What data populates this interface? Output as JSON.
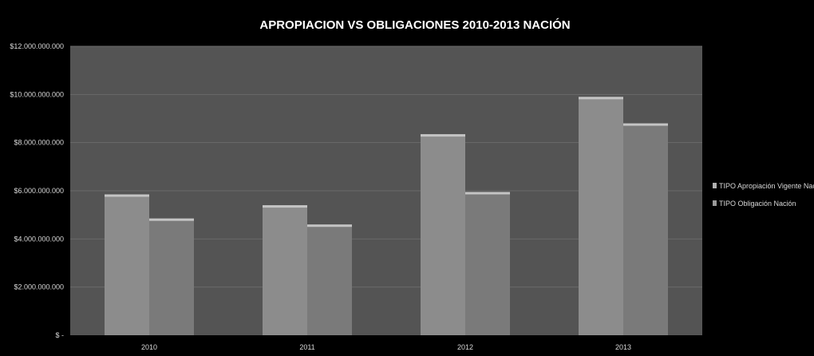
{
  "chart_data": {
    "type": "bar",
    "title": "APROPIACION VS OBLIGACIONES 2010-2013 NACIÓN",
    "categories": [
      "2010",
      "2011",
      "2012",
      "2013"
    ],
    "series": [
      {
        "name": "TIPO Apropiación Vigente Nación",
        "values": [
          5850000000,
          5400000000,
          8350000000,
          9900000000
        ]
      },
      {
        "name": "TIPO Obligación Nación",
        "values": [
          4850000000,
          4600000000,
          5950000000,
          8800000000
        ]
      }
    ],
    "ylim": [
      0,
      12000000000
    ],
    "yticks": [
      {
        "value": 0,
        "label": "$ -"
      },
      {
        "value": 2000000000,
        "label": "$2.000.000.000"
      },
      {
        "value": 4000000000,
        "label": "$4.000.000.000"
      },
      {
        "value": 6000000000,
        "label": "$6.000.000.000"
      },
      {
        "value": 8000000000,
        "label": "$8.000.000.000"
      },
      {
        "value": 10000000000,
        "label": "$10.000.000.000"
      },
      {
        "value": 12000000000,
        "label": "$12.000.000.000"
      }
    ],
    "grid": true,
    "legend_position": "right",
    "colors": {
      "background": "#000000",
      "plot_area": "#545454",
      "gridline": "#6a6a6a",
      "series_1": "#8c8c8c",
      "series_2": "#7a7a7a",
      "bar_top_highlight": "#c4c4c4",
      "text": "#d8d8d8",
      "title": "#ffffff"
    }
  }
}
